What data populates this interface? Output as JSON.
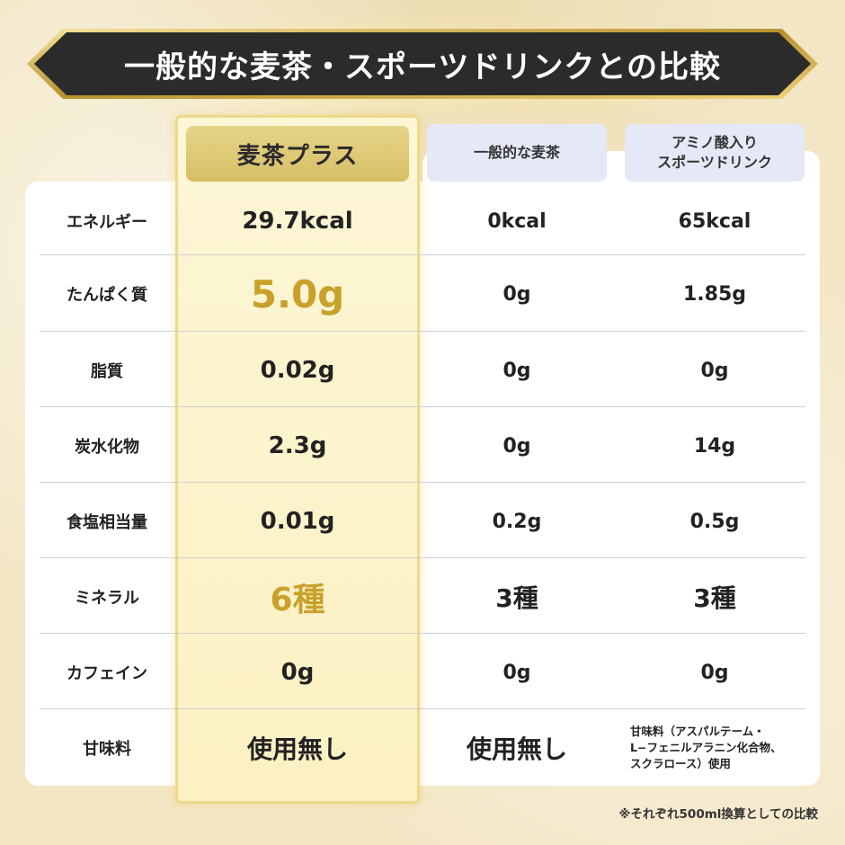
{
  "title": "一般的な麦茶・スポーツドリンクとの比較",
  "columns": {
    "a": "麦茶プラス",
    "b": "一般的な麦茶",
    "c_line1": "アミノ酸入り",
    "c_line2": "スポーツドリンク"
  },
  "rows": [
    {
      "label": "エネルギー",
      "a": "29.7kcal",
      "b": "0kcal",
      "c": "65kcal"
    },
    {
      "label": "たんぱく質",
      "a": "5.0g",
      "b": "0g",
      "c": "1.85g"
    },
    {
      "label": "脂質",
      "a": "0.02g",
      "b": "0g",
      "c": "0g"
    },
    {
      "label": "炭水化物",
      "a": "2.3g",
      "b": "0g",
      "c": "14g"
    },
    {
      "label": "食塩相当量",
      "a": "0.01g",
      "b": "0.2g",
      "c": "0.5g"
    },
    {
      "label": "ミネラル",
      "a": "6種",
      "b": "3種",
      "c": "3種"
    },
    {
      "label": "カフェイン",
      "a": "0g",
      "b": "0g",
      "c": "0g"
    },
    {
      "label": "甘味料",
      "a": "使用無し",
      "b": "使用無し",
      "c_line1": "甘味料（アスパルテーム・",
      "c_line2": "L−フェニルアラニン化合物、",
      "c_line3": "スクラロース）使用"
    }
  ],
  "footnote": "※それぞれ500ml換算としての比較",
  "colors": {
    "gold": "#c9a12a",
    "banner": "#2b2b2b",
    "highlight": "#fbf1c3",
    "sub_header": "#e5e8f6"
  }
}
